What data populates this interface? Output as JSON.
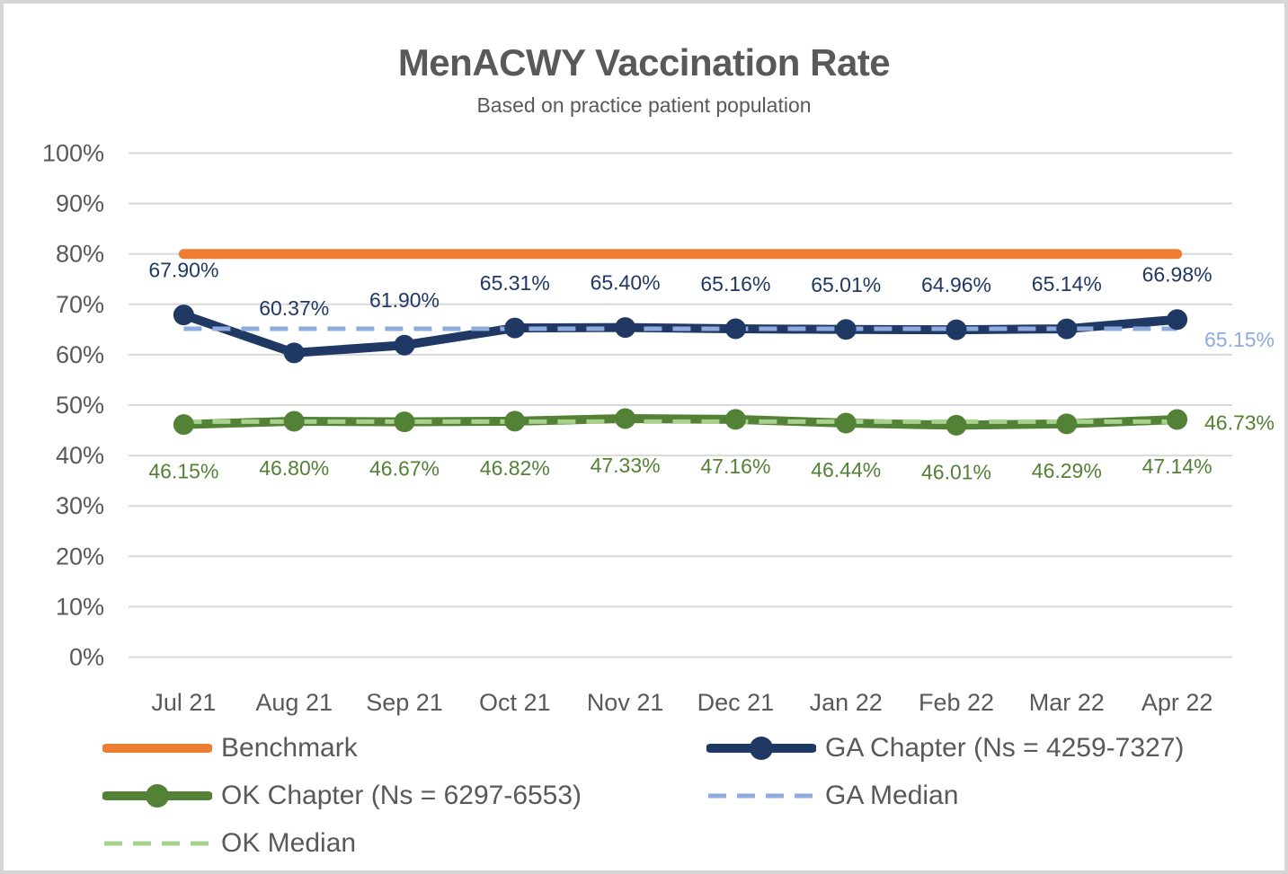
{
  "chart_data": {
    "type": "line",
    "title": "MenACWY Vaccination Rate",
    "subtitle": "Based on practice patient population",
    "categories": [
      "Jul 21",
      "Aug 21",
      "Sep 21",
      "Oct 21",
      "Nov 21",
      "Dec 21",
      "Jan 22",
      "Feb 22",
      "Mar 22",
      "Apr 22"
    ],
    "y_axis": {
      "min": 0,
      "max": 100,
      "step": 10,
      "tick_labels": [
        "0%",
        "10%",
        "20%",
        "30%",
        "40%",
        "50%",
        "60%",
        "70%",
        "80%",
        "90%",
        "100%"
      ],
      "grid": true
    },
    "legend_position": "bottom",
    "colors": {
      "grid": "#D9D9D9",
      "axis_text": "#595959",
      "title_text": "#595959"
    },
    "series": [
      {
        "name": "Benchmark",
        "kind": "constant",
        "value": 80,
        "color": "#ED7D31",
        "dash": false,
        "markers": false
      },
      {
        "name": "GA Chapter (Ns = 4259-7327)",
        "kind": "data",
        "color": "#1F3864",
        "markers": true,
        "label_side": "above",
        "values": [
          67.9,
          60.37,
          61.9,
          65.31,
          65.4,
          65.16,
          65.01,
          64.96,
          65.14,
          66.98
        ],
        "labels": [
          "67.90%",
          "60.37%",
          "61.90%",
          "65.31%",
          "65.40%",
          "65.16%",
          "65.01%",
          "64.96%",
          "65.14%",
          "66.98%"
        ]
      },
      {
        "name": "OK Chapter (Ns = 6297-6553)",
        "kind": "data",
        "color": "#538135",
        "markers": true,
        "label_side": "below",
        "values": [
          46.15,
          46.8,
          46.67,
          46.82,
          47.33,
          47.16,
          46.44,
          46.01,
          46.29,
          47.14
        ],
        "labels": [
          "46.15%",
          "46.80%",
          "46.67%",
          "46.82%",
          "47.33%",
          "47.16%",
          "46.44%",
          "46.01%",
          "46.29%",
          "47.14%"
        ]
      },
      {
        "name": "GA Median",
        "kind": "constant",
        "value": 65.15,
        "label": "65.15%",
        "color": "#8FAADC",
        "label_color": "#8FAADC",
        "dash": true,
        "markers": false
      },
      {
        "name": "OK Median",
        "kind": "constant",
        "value": 46.73,
        "label": "46.73%",
        "color": "#A9D18E",
        "label_color": "#538135",
        "dash": true,
        "markers": false
      }
    ]
  }
}
